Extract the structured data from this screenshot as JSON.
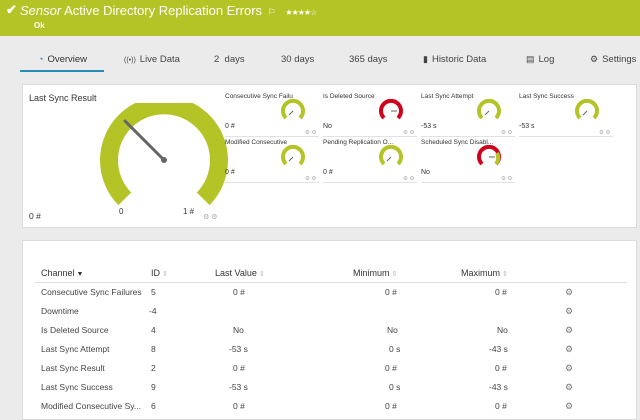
{
  "header": {
    "title_prefix": "Sensor",
    "title": "Active Directory Replication Errors",
    "flag": "⚐",
    "stars": "★★★★☆",
    "status": "Ok"
  },
  "tabs": [
    {
      "label": "Overview",
      "icon": "◔"
    },
    {
      "label": "Live Data",
      "icon": "((•))"
    },
    {
      "label": "2  days"
    },
    {
      "label": "30 days"
    },
    {
      "label": "365 days"
    },
    {
      "label": "Historic Data",
      "icon": "▮"
    },
    {
      "label": "Log",
      "icon": "▤"
    },
    {
      "label": "Settings",
      "icon": "⚙"
    }
  ],
  "gauges": {
    "main": {
      "title": "Last Sync Result",
      "min_label": "0 #",
      "zero_label": "0",
      "max_label": "1 #",
      "cfg": "⚙ ⚙"
    },
    "mini": [
      {
        "label": "Consecutive Sync Failu",
        "value": "0 #",
        "cfg": "⚙ ⚙",
        "color": "#b4c427"
      },
      {
        "label": "Is Deleted Source",
        "value": "No",
        "cfg": "⚙ ⚙",
        "color": "#d0021b"
      },
      {
        "label": "Last Sync Attempt",
        "value": "-53 s",
        "cfg": "⚙ ⚙",
        "color": "#b4c427"
      },
      {
        "label": "Last Sync Success",
        "value": "-53 s",
        "cfg": "⚙ ⚙",
        "color": "#b4c427"
      },
      {
        "label": "Modified Consecutive",
        "value": "0 #",
        "cfg": "⚙ ⚙",
        "color": "#b4c427"
      },
      {
        "label": "Pending Replication O...",
        "value": "0 #",
        "cfg": "⚙ ⚙",
        "color": "#b4c427"
      },
      {
        "label": "Scheduled Sync Disabl...",
        "value": "No",
        "cfg": "⚙ ⚙",
        "color": "#d0021b"
      }
    ]
  },
  "table": {
    "headers": {
      "channel": "Channel",
      "id": "ID",
      "last_value": "Last Value",
      "minimum": "Minimum",
      "maximum": "Maximum"
    },
    "sort_desc": "▼",
    "sort_icon": "⇕",
    "rows": [
      {
        "channel": "Consecutive Sync Failures",
        "id": "5",
        "last": "0 #",
        "min": "0 #",
        "max": "0 #"
      },
      {
        "channel": "Downtime",
        "id": "-4",
        "last": "",
        "min": "",
        "max": ""
      },
      {
        "channel": "Is Deleted Source",
        "id": "4",
        "last": "No",
        "min": "No",
        "max": "No"
      },
      {
        "channel": "Last Sync Attempt",
        "id": "8",
        "last": "-53 s",
        "min": "0 s",
        "max": "-43 s"
      },
      {
        "channel": "Last Sync Result",
        "id": "2",
        "last": "0 #",
        "min": "0 #",
        "max": "0 #"
      },
      {
        "channel": "Last Sync Success",
        "id": "9",
        "last": "-53 s",
        "min": "0 s",
        "max": "-43 s"
      },
      {
        "channel": "Modified Consecutive Sy...",
        "id": "6",
        "last": "0 #",
        "min": "0 #",
        "max": "0 #"
      }
    ],
    "cog": "⚙"
  }
}
